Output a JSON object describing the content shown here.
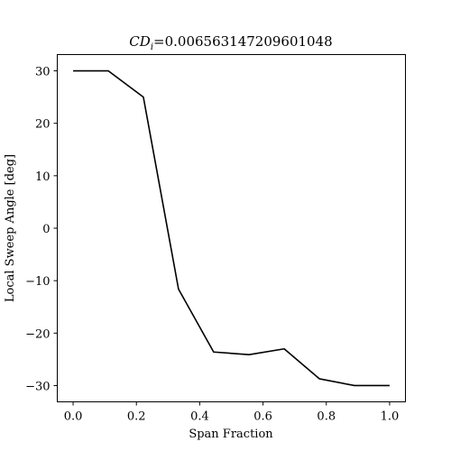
{
  "chart_data": {
    "type": "line",
    "title_math": "CD",
    "title_sub": "i",
    "title_value": "=0.006563147209601048",
    "xlabel": "Span Fraction",
    "ylabel": "Local Sweep Angle [deg]",
    "xlim": [
      -0.05,
      1.05
    ],
    "ylim": [
      -33.1,
      33.1
    ],
    "xticks": [
      0.0,
      0.2,
      0.4,
      0.6,
      0.8,
      1.0
    ],
    "xtick_labels": [
      "0.0",
      "0.2",
      "0.4",
      "0.6",
      "0.8",
      "1.0"
    ],
    "yticks": [
      30,
      20,
      10,
      0,
      -10,
      -20,
      -30
    ],
    "ytick_labels": [
      "30",
      "20",
      "10",
      "0",
      "−10",
      "−20",
      "−30"
    ],
    "grid": false,
    "series": [
      {
        "color": "#000000",
        "x": [
          0.0,
          0.111,
          0.222,
          0.333,
          0.444,
          0.556,
          0.667,
          0.778,
          0.889,
          1.0
        ],
        "y": [
          30.0,
          30.0,
          25.0,
          -11.6,
          -23.6,
          -24.1,
          -23.0,
          -28.7,
          -30.0,
          -30.0
        ]
      }
    ]
  }
}
